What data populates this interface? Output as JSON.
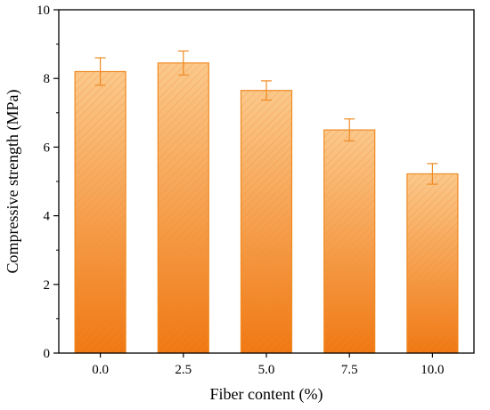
{
  "chart_data": {
    "type": "bar",
    "categories": [
      "0.0",
      "2.5",
      "5.0",
      "7.5",
      "10.0"
    ],
    "values": [
      8.2,
      8.45,
      7.65,
      6.5,
      5.22
    ],
    "errors": [
      0.4,
      0.35,
      0.28,
      0.32,
      0.3
    ],
    "title": "",
    "xlabel": "Fiber content (%)",
    "ylabel": "Compressive strength (MPa)",
    "ylim": [
      0,
      10
    ],
    "yticks": [
      "0",
      "2",
      "4",
      "6",
      "8",
      "10"
    ],
    "grid": false,
    "legend": "none",
    "bar_fill": "hatched orange gradient",
    "colors": {
      "bar_top": "#FBC98C",
      "bar_bottom": "#F07812",
      "bar_edge": "#EF8A22",
      "hatch": "#EE8A3A",
      "error_bar": "#EF8A22",
      "axis": "#000000"
    }
  }
}
